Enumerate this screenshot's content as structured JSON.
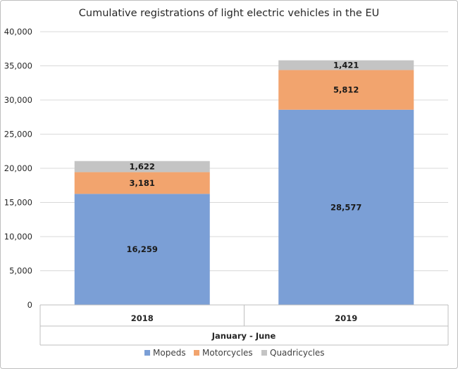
{
  "chart_data": {
    "type": "bar",
    "stacked": true,
    "title": "Cumulative registrations of light electric vehicles in the EU",
    "xlabel": "January - June",
    "ylabel": "",
    "categories": [
      "2018",
      "2019"
    ],
    "ylim": [
      0,
      40000
    ],
    "yticks": [
      0,
      5000,
      10000,
      15000,
      20000,
      25000,
      30000,
      35000,
      40000
    ],
    "ytick_labels": [
      "0",
      "5,000",
      "10,000",
      "15,000",
      "20,000",
      "25,000",
      "30,000",
      "35,000",
      "40,000"
    ],
    "grid": true,
    "legend_position": "bottom",
    "series": [
      {
        "name": "Mopeds",
        "color": "#7b9fd6",
        "values": [
          16259,
          28577
        ],
        "labels": [
          "16,259",
          "28,577"
        ]
      },
      {
        "name": "Motorcycles",
        "color": "#f2a46e",
        "values": [
          3181,
          5812
        ],
        "labels": [
          "3,181",
          "5,812"
        ]
      },
      {
        "name": "Quadricycles",
        "color": "#c4c4c4",
        "values": [
          1622,
          1421
        ],
        "labels": [
          "1,622",
          "1,421"
        ]
      }
    ]
  }
}
